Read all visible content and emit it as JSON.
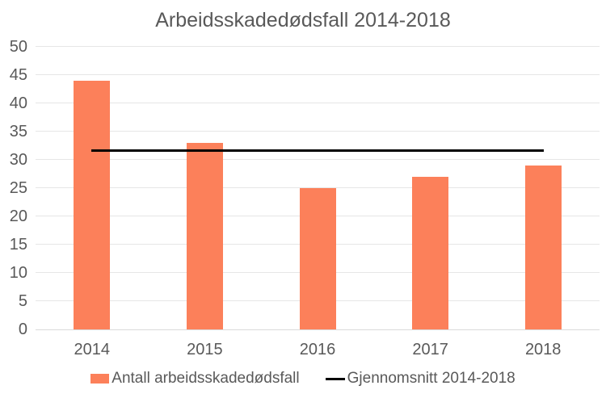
{
  "chart_data": {
    "type": "bar",
    "title": "Arbeidsskadedødsfall 2014-2018",
    "categories": [
      "2014",
      "2015",
      "2016",
      "2017",
      "2018"
    ],
    "series": [
      {
        "name": "Antall arbeidsskadedødsfall",
        "type": "bar",
        "values": [
          44,
          33,
          25,
          27,
          29
        ],
        "color": "#FC805A"
      },
      {
        "name": "Gjennomsnitt 2014-2018",
        "type": "line",
        "value": 31.6,
        "color": "#000000"
      }
    ],
    "xlabel": "",
    "ylabel": "",
    "ylim": [
      0,
      50
    ],
    "ytick_step": 5,
    "yticks": [
      0,
      5,
      10,
      15,
      20,
      25,
      30,
      35,
      40,
      45,
      50
    ],
    "grid": true,
    "legend_position": "bottom"
  },
  "style": {
    "bar_color": "#FC805A",
    "average_line_color": "#000000",
    "grid_color": "#E6E6E6",
    "axis_line_color": "#D9D9D9",
    "text_color": "#595959",
    "background": "#FFFFFF"
  }
}
